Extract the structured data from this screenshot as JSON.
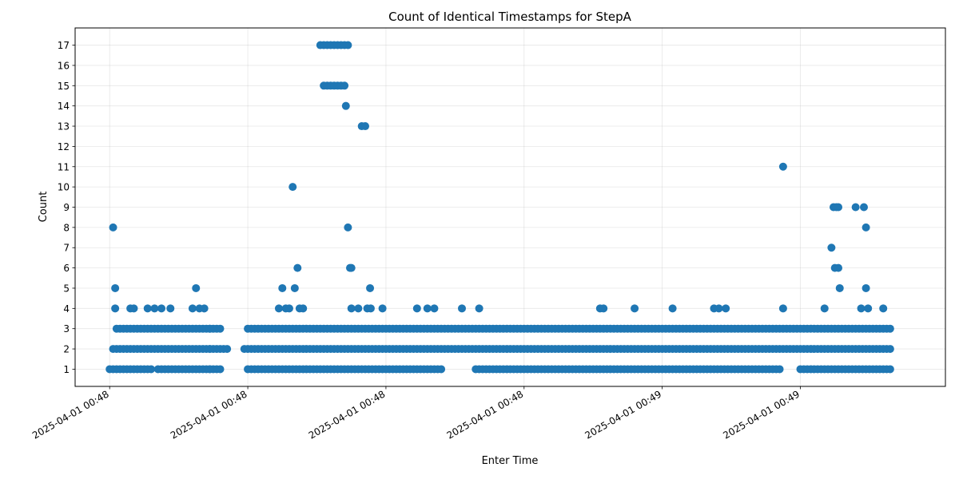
{
  "chart_data": {
    "type": "scatter",
    "title": "Count of Identical Timestamps for StepA",
    "xlabel": "Enter Time",
    "ylabel": "Count",
    "x_tick_labels": [
      "2025-04-01 00:48",
      "2025-04-01 00:48",
      "2025-04-01 00:48",
      "2025-04-01 00:48",
      "2025-04-01 00:49",
      "2025-04-01 00:49"
    ],
    "y_ticks": [
      1,
      2,
      3,
      4,
      5,
      6,
      7,
      8,
      9,
      10,
      11,
      12,
      13,
      14,
      15,
      16,
      17
    ],
    "ylim": [
      0.15,
      17.85
    ],
    "xlim": [
      -0.5,
      12.1
    ],
    "x_tick_positions": [
      0,
      2,
      4,
      6,
      8,
      10
    ],
    "grid": true,
    "marker_color": "#1f77b4",
    "bands": [
      {
        "y": 1,
        "ranges": [
          [
            0,
            0.6
          ],
          [
            0.7,
            1.6
          ],
          [
            2.0,
            4.8
          ],
          [
            5.3,
            9.7
          ],
          [
            10.0,
            11.3
          ]
        ]
      },
      {
        "y": 2,
        "ranges": [
          [
            0.05,
            1.7
          ],
          [
            1.95,
            11.3
          ]
        ]
      },
      {
        "y": 3,
        "ranges": [
          [
            0.1,
            1.6
          ],
          [
            2.0,
            11.3
          ]
        ]
      }
    ],
    "points": [
      {
        "x": 0.05,
        "y": 8
      },
      {
        "x": 0.08,
        "y": 5
      },
      {
        "x": 0.08,
        "y": 4
      },
      {
        "x": 0.3,
        "y": 4
      },
      {
        "x": 0.35,
        "y": 4
      },
      {
        "x": 0.55,
        "y": 4
      },
      {
        "x": 0.65,
        "y": 4
      },
      {
        "x": 0.75,
        "y": 4
      },
      {
        "x": 0.88,
        "y": 4
      },
      {
        "x": 1.2,
        "y": 4
      },
      {
        "x": 1.25,
        "y": 5
      },
      {
        "x": 1.3,
        "y": 4
      },
      {
        "x": 1.37,
        "y": 4
      },
      {
        "x": 1.45,
        "y": 3
      },
      {
        "x": 1.45,
        "y": 2
      },
      {
        "x": 1.45,
        "y": 1
      },
      {
        "x": 2.45,
        "y": 4
      },
      {
        "x": 2.5,
        "y": 5
      },
      {
        "x": 2.55,
        "y": 4
      },
      {
        "x": 2.6,
        "y": 4
      },
      {
        "x": 2.65,
        "y": 10
      },
      {
        "x": 2.68,
        "y": 5
      },
      {
        "x": 2.72,
        "y": 6
      },
      {
        "x": 2.75,
        "y": 4
      },
      {
        "x": 2.8,
        "y": 4
      },
      {
        "x": 3.05,
        "y": 17
      },
      {
        "x": 3.1,
        "y": 17
      },
      {
        "x": 3.15,
        "y": 17
      },
      {
        "x": 3.2,
        "y": 17
      },
      {
        "x": 3.25,
        "y": 17
      },
      {
        "x": 3.3,
        "y": 17
      },
      {
        "x": 3.35,
        "y": 17
      },
      {
        "x": 3.4,
        "y": 17
      },
      {
        "x": 3.45,
        "y": 17
      },
      {
        "x": 3.1,
        "y": 15
      },
      {
        "x": 3.15,
        "y": 15
      },
      {
        "x": 3.2,
        "y": 15
      },
      {
        "x": 3.25,
        "y": 15
      },
      {
        "x": 3.3,
        "y": 15
      },
      {
        "x": 3.35,
        "y": 15
      },
      {
        "x": 3.4,
        "y": 15
      },
      {
        "x": 3.42,
        "y": 14
      },
      {
        "x": 3.45,
        "y": 8
      },
      {
        "x": 3.48,
        "y": 6
      },
      {
        "x": 3.5,
        "y": 6
      },
      {
        "x": 3.5,
        "y": 4
      },
      {
        "x": 3.6,
        "y": 4
      },
      {
        "x": 3.65,
        "y": 13
      },
      {
        "x": 3.7,
        "y": 13
      },
      {
        "x": 3.73,
        "y": 4
      },
      {
        "x": 3.78,
        "y": 4
      },
      {
        "x": 3.77,
        "y": 5
      },
      {
        "x": 3.95,
        "y": 4
      },
      {
        "x": 4.45,
        "y": 4
      },
      {
        "x": 4.6,
        "y": 4
      },
      {
        "x": 4.7,
        "y": 4
      },
      {
        "x": 5.1,
        "y": 4
      },
      {
        "x": 5.35,
        "y": 4
      },
      {
        "x": 7.1,
        "y": 4
      },
      {
        "x": 7.15,
        "y": 4
      },
      {
        "x": 7.6,
        "y": 4
      },
      {
        "x": 8.15,
        "y": 4
      },
      {
        "x": 8.75,
        "y": 4
      },
      {
        "x": 8.82,
        "y": 4
      },
      {
        "x": 8.92,
        "y": 4
      },
      {
        "x": 9.75,
        "y": 11
      },
      {
        "x": 9.75,
        "y": 4
      },
      {
        "x": 10.35,
        "y": 4
      },
      {
        "x": 10.45,
        "y": 7
      },
      {
        "x": 10.48,
        "y": 9
      },
      {
        "x": 10.52,
        "y": 9
      },
      {
        "x": 10.55,
        "y": 9
      },
      {
        "x": 10.5,
        "y": 6
      },
      {
        "x": 10.55,
        "y": 6
      },
      {
        "x": 10.57,
        "y": 5
      },
      {
        "x": 10.8,
        "y": 9
      },
      {
        "x": 10.88,
        "y": 4
      },
      {
        "x": 10.92,
        "y": 9
      },
      {
        "x": 10.95,
        "y": 8
      },
      {
        "x": 10.95,
        "y": 5
      },
      {
        "x": 10.98,
        "y": 4
      },
      {
        "x": 11.2,
        "y": 4
      }
    ]
  }
}
